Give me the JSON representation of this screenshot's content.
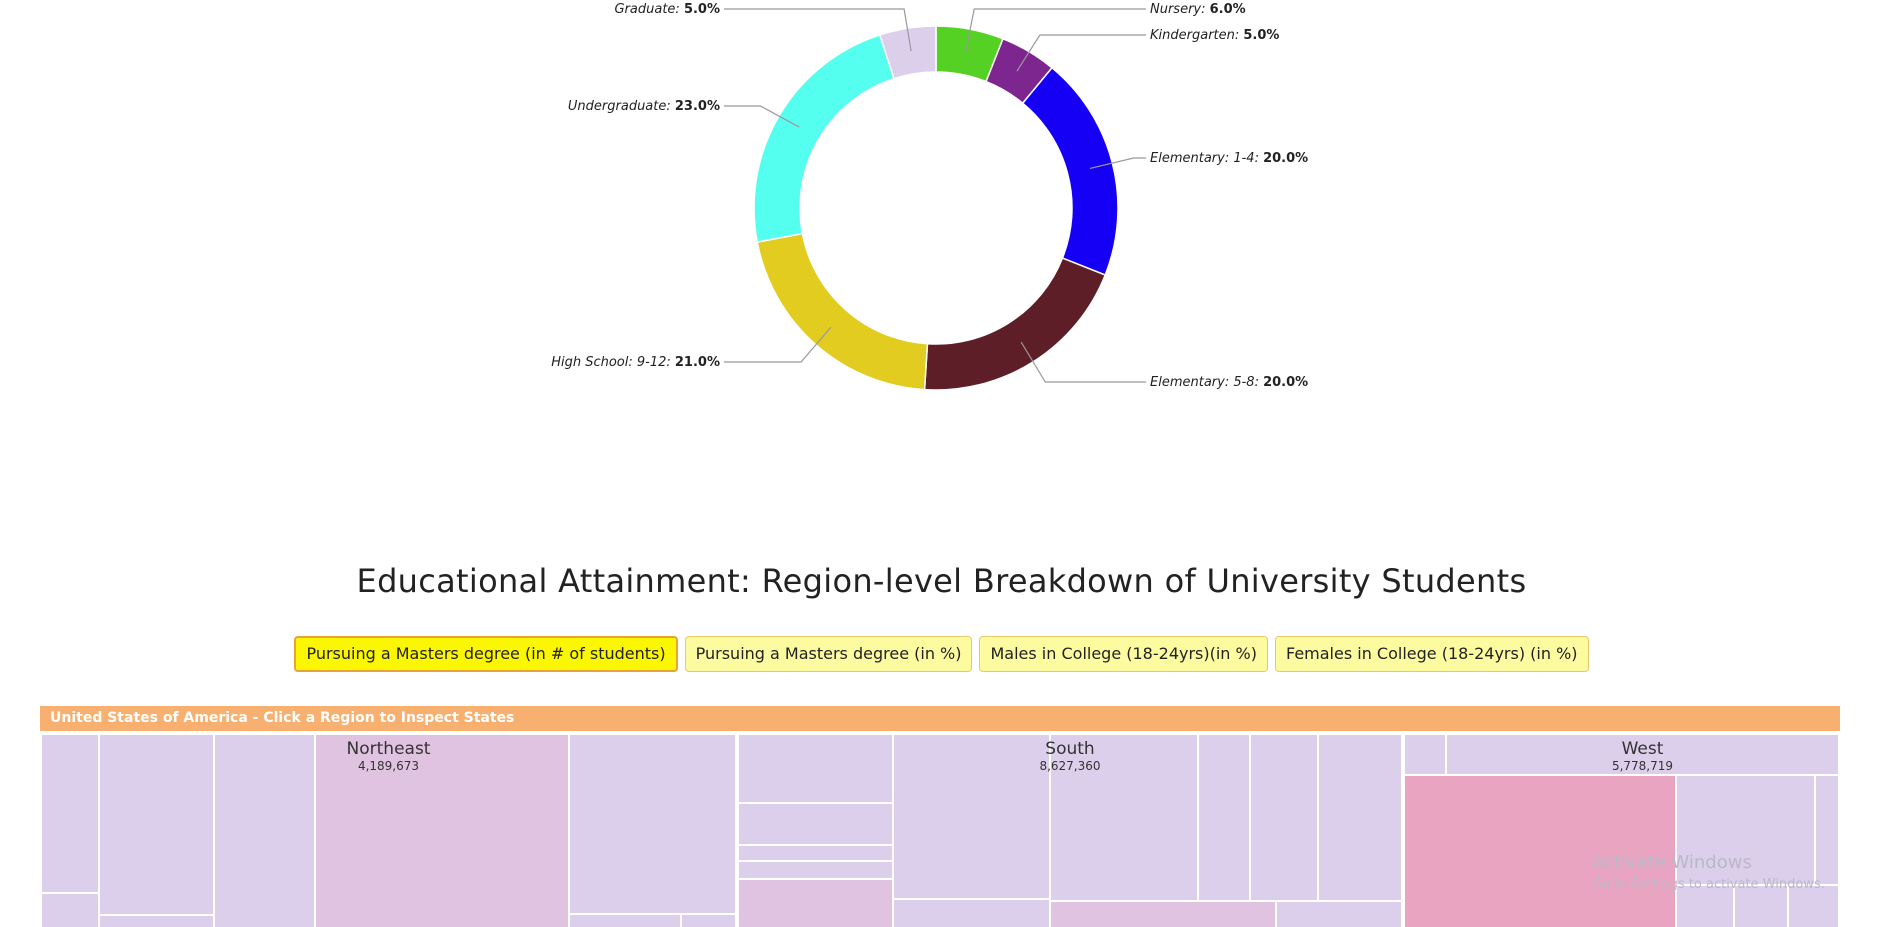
{
  "chart_data": {
    "type": "pie",
    "variant": "donut",
    "slices": [
      {
        "label": "Nursery:",
        "value": 6.0,
        "value_text": "6.0%",
        "color": "#55d124"
      },
      {
        "label": "Kindergarten:",
        "value": 5.0,
        "value_text": "5.0%",
        "color": "#7e2690"
      },
      {
        "label": "Elementary: 1-4:",
        "value": 20.0,
        "value_text": "20.0%",
        "color": "#1500f5"
      },
      {
        "label": "Elementary: 5-8:",
        "value": 20.0,
        "value_text": "20.0%",
        "color": "#5e1e28"
      },
      {
        "label": "High School: 9-12:",
        "value": 21.0,
        "value_text": "21.0%",
        "color": "#e2cc20"
      },
      {
        "label": "Undergraduate:",
        "value": 23.0,
        "value_text": "23.0%",
        "color": "#55fff0"
      },
      {
        "label": "Graduate:",
        "value": 5.0,
        "value_text": "5.0%",
        "color": "#dccfeb"
      }
    ]
  },
  "section": {
    "title": "Educational Attainment: Region-level Breakdown of University Students"
  },
  "buttons": [
    {
      "label": "Pursuing a Masters degree (in # of students)",
      "active": true
    },
    {
      "label": "Pursuing a Masters degree (in %)",
      "active": false
    },
    {
      "label": "Males in College (18-24yrs)(in %)",
      "active": false
    },
    {
      "label": "Females in College (18-24yrs) (in %)",
      "active": false
    }
  ],
  "treemap": {
    "header": "United States of America - Click a Region to Inspect States",
    "regions": [
      {
        "name": "Northeast",
        "value": "4,189,673"
      },
      {
        "name": "South",
        "value": "8,627,360"
      },
      {
        "name": "West",
        "value": "5,778,719"
      }
    ],
    "colors": {
      "base": "#dccfeb",
      "medium": "#e0c3e0",
      "strong": "#e8a4c0"
    }
  },
  "watermark": {
    "title": "Activate Windows",
    "subtitle": "Go to Settings to activate Windows."
  }
}
